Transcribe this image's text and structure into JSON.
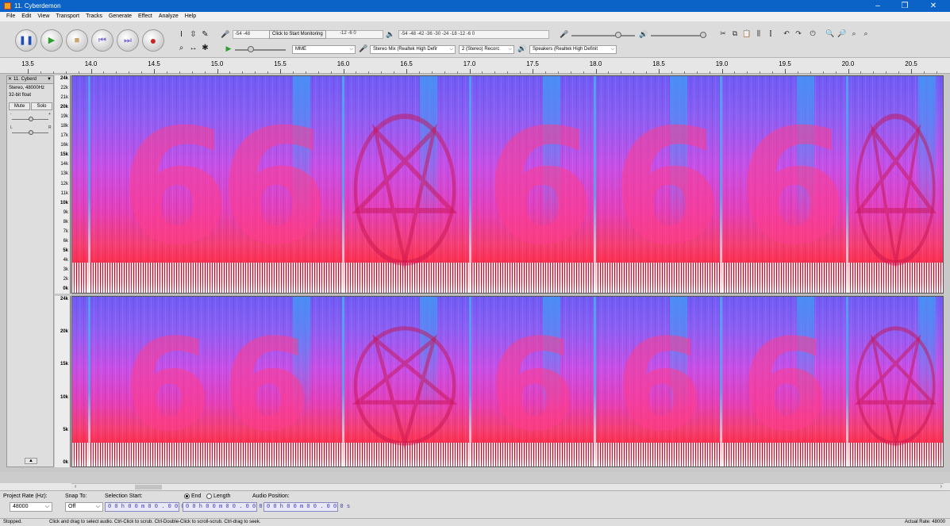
{
  "window": {
    "title": "11. Cyberdemon",
    "minimize": "–",
    "maximize": "❐",
    "close": "✕"
  },
  "menu": [
    "File",
    "Edit",
    "View",
    "Transport",
    "Tracks",
    "Generate",
    "Effect",
    "Analyze",
    "Help"
  ],
  "meters": {
    "record_ticks": "-54  -48  ",
    "monitor_button": "Click to Start Monitoring",
    "record_ticks_after": "  -12  -6  0",
    "play_ticks": "-54  -48  -42  -36  -30  -24  -18  -12  -6  0"
  },
  "devices": {
    "host": "MME",
    "recording_device": "Stereo Mix (Realtek High Defir",
    "channels": "2 (Stereo) Recorc",
    "playback_device": "Speakers (Realtek High Definit"
  },
  "ruler": {
    "labels": [
      "13.5",
      "14.0",
      "14.5",
      "15.0",
      "15.5",
      "16.0",
      "16.5",
      "17.0",
      "17.5",
      "18.0",
      "18.5",
      "19.0",
      "19.5",
      "20.0",
      "20.5"
    ]
  },
  "track": {
    "name": "11. Cyberd",
    "format_line1": "Stereo, 48000Hz",
    "format_line2": "32-bit float",
    "mute": "Mute",
    "solo": "Solo",
    "gain_minus": "-",
    "gain_plus": "+",
    "pan_left": "L",
    "pan_right": "R",
    "collapse": "▲"
  },
  "scale_top": [
    "24k",
    "22k",
    "21k",
    "20k",
    "19k",
    "18k",
    "17k",
    "16k",
    "15k",
    "14k",
    "13k",
    "12k",
    "11k",
    "10k",
    "9k",
    "8k",
    "7k",
    "6k",
    "5k",
    "4k",
    "3k",
    "2k",
    "0k"
  ],
  "scale_bottom": [
    "24k",
    "20k",
    "15k",
    "10k",
    "5k",
    "0k"
  ],
  "selection": {
    "project_rate_label": "Project Rate (Hz):",
    "project_rate": "48000",
    "snap_label": "Snap To:",
    "snap_value": "Off",
    "selection_start_label": "Selection Start:",
    "end_label": "End",
    "length_label": "Length",
    "audio_position_label": "Audio Position:",
    "start_time": "0 0 h 0 0 m 0 0 . 0 0 0 s",
    "end_time": "0 0 h 0 0 m 0 0 . 0 0 0 s",
    "audio_position": "0 0 h 0 0 m 0 0 . 0 0 0 s"
  },
  "status": {
    "state": "Stopped.",
    "hint": "Click and drag to select audio. Ctrl-Click to scrub. Ctrl-Double-Click to scroll-scrub. Ctrl-drag to seek.",
    "actual_rate": "Actual Rate: 48000"
  },
  "icons": {
    "pause": "pause-icon",
    "play": "play-icon",
    "stop": "stop-icon",
    "skip_start": "skip-start-icon",
    "skip_end": "skip-end-icon",
    "record": "record-icon"
  },
  "colors": {
    "titlebar": "#0b63c7",
    "record": "#c62828",
    "play": "#2e9e2e",
    "transport": "#1f4fb5"
  }
}
